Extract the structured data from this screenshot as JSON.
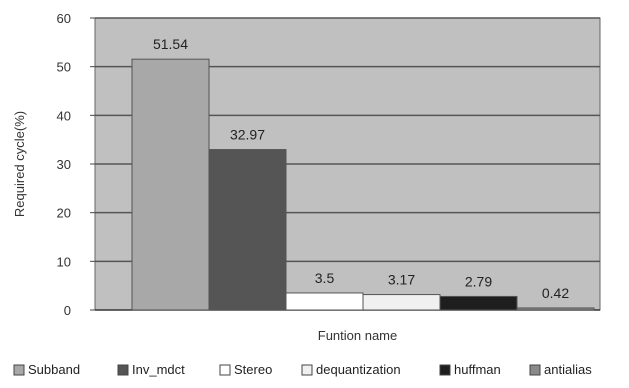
{
  "chart_data": {
    "type": "bar",
    "title": "",
    "xlabel": "Funtion name",
    "ylabel": "Required cycle(%)",
    "ylim": [
      0,
      60
    ],
    "yticks": [
      0,
      10,
      20,
      30,
      40,
      50,
      60
    ],
    "grid": true,
    "legend_position": "bottom",
    "series": [
      {
        "name": "Subband",
        "value": 51.54,
        "label": "51.54",
        "color": "#a8a8a8"
      },
      {
        "name": "Inv_mdct",
        "value": 32.97,
        "label": "32.97",
        "color": "#555555"
      },
      {
        "name": "Stereo",
        "value": 3.5,
        "label": "3.5",
        "color": "#ffffff"
      },
      {
        "name": "dequantization",
        "value": 3.17,
        "label": "3.17",
        "color": "#f0f0f0"
      },
      {
        "name": "huffman",
        "value": 2.79,
        "label": "2.79",
        "color": "#1e1e1e"
      },
      {
        "name": "antialias",
        "value": 0.42,
        "label": "0.42",
        "color": "#8a8a8a"
      }
    ],
    "plot_background": "#c0c0c0",
    "gridline_color": "#555555"
  }
}
